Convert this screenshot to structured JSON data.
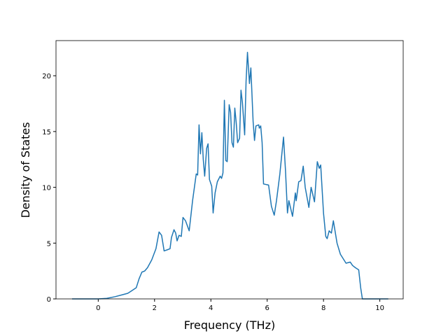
{
  "chart_data": {
    "type": "line",
    "x_label": "Frequency (THz)",
    "y_label": "Density of States",
    "color": "#1f77b4",
    "x": [
      -0.93,
      0,
      0.3,
      0.6,
      0.9,
      1.05,
      1.17,
      1.35,
      1.45,
      1.55,
      1.65,
      1.75,
      1.9,
      2.05,
      2.16,
      2.25,
      2.34,
      2.45,
      2.55,
      2.6,
      2.69,
      2.75,
      2.8,
      2.87,
      2.95,
      3.01,
      3.1,
      3.23,
      3.35,
      3.48,
      3.53,
      3.58,
      3.63,
      3.68,
      3.73,
      3.78,
      3.85,
      3.9,
      3.95,
      4.03,
      4.08,
      4.15,
      4.23,
      4.33,
      4.38,
      4.43,
      4.48,
      4.53,
      4.58,
      4.65,
      4.7,
      4.75,
      4.8,
      4.85,
      4.9,
      4.95,
      5.02,
      5.07,
      5.12,
      5.2,
      5.25,
      5.3,
      5.37,
      5.42,
      5.5,
      5.55,
      5.6,
      5.7,
      5.72,
      5.77,
      5.82,
      5.87,
      6.05,
      6.15,
      6.25,
      6.33,
      6.45,
      6.58,
      6.65,
      6.72,
      6.77,
      6.9,
      7.0,
      7.03,
      7.12,
      7.2,
      7.28,
      7.35,
      7.48,
      7.56,
      7.68,
      7.78,
      7.85,
      7.9,
      8.0,
      8.08,
      8.13,
      8.2,
      8.28,
      8.35,
      8.48,
      8.6,
      8.7,
      8.8,
      8.95,
      9.03,
      9.13,
      9.25,
      9.32,
      9.38,
      9.6,
      10.3
    ],
    "values": [
      0,
      0,
      0.05,
      0.2,
      0.4,
      0.5,
      0.7,
      1.0,
      1.8,
      2.4,
      2.5,
      2.8,
      3.5,
      4.5,
      6.0,
      5.7,
      4.3,
      4.4,
      4.5,
      5.5,
      6.2,
      5.9,
      5.2,
      5.7,
      5.6,
      7.3,
      7.0,
      6.1,
      8.8,
      11.2,
      11.1,
      15.6,
      13.0,
      14.9,
      12.5,
      11.0,
      13.5,
      13.9,
      10.7,
      10.1,
      7.7,
      9.5,
      10.5,
      11.0,
      10.8,
      11.3,
      17.8,
      12.4,
      12.3,
      17.4,
      16.7,
      14.0,
      13.6,
      17.1,
      15.8,
      14.0,
      14.4,
      18.7,
      17.6,
      14.7,
      19.5,
      22.1,
      19.3,
      20.7,
      15.9,
      14.2,
      15.5,
      15.6,
      15.3,
      15.5,
      14.0,
      10.3,
      10.2,
      8.3,
      7.5,
      8.8,
      11.2,
      14.5,
      11.5,
      7.7,
      8.8,
      7.4,
      9.5,
      8.8,
      10.5,
      10.6,
      11.9,
      10.0,
      8.2,
      10.0,
      8.7,
      12.3,
      11.7,
      12.0,
      7.7,
      5.6,
      5.4,
      6.1,
      5.9,
      7.0,
      5.0,
      4.0,
      3.6,
      3.2,
      3.3,
      3.0,
      2.8,
      2.6,
      1.0,
      0,
      0,
      0
    ],
    "xlim": [
      -1.5,
      10.83
    ],
    "ylim": [
      0,
      23.15
    ],
    "xticks": [
      0,
      2,
      4,
      6,
      8,
      10
    ],
    "yticks": [
      0,
      5,
      10,
      15,
      20
    ]
  }
}
